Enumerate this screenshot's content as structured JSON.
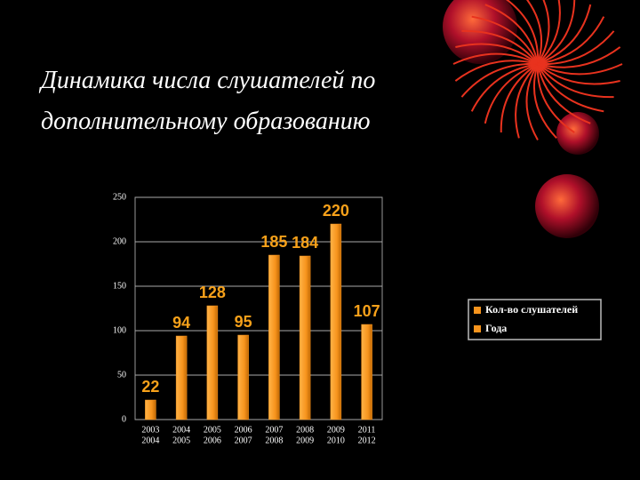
{
  "chart_data": {
    "type": "bar",
    "title": "Динамика числа слушателей по дополнительному образованию",
    "categories": [
      [
        "2003",
        "2004"
      ],
      [
        "2004",
        "2005"
      ],
      [
        "2005",
        "2006"
      ],
      [
        "2006",
        "2007"
      ],
      [
        "2007",
        "2008"
      ],
      [
        "2008",
        "2009"
      ],
      [
        "2009",
        "2010"
      ],
      [
        "2011",
        "2012"
      ]
    ],
    "series": [
      {
        "color": "#f7941d",
        "values": [
          22,
          94,
          128,
          95,
          185,
          184,
          220,
          107
        ]
      }
    ],
    "legend": [
      "Кол-во слушателей",
      "Года"
    ],
    "ylim": [
      0,
      250
    ],
    "yticks": [
      0,
      50,
      100,
      150,
      200,
      250
    ],
    "grid": true
  }
}
